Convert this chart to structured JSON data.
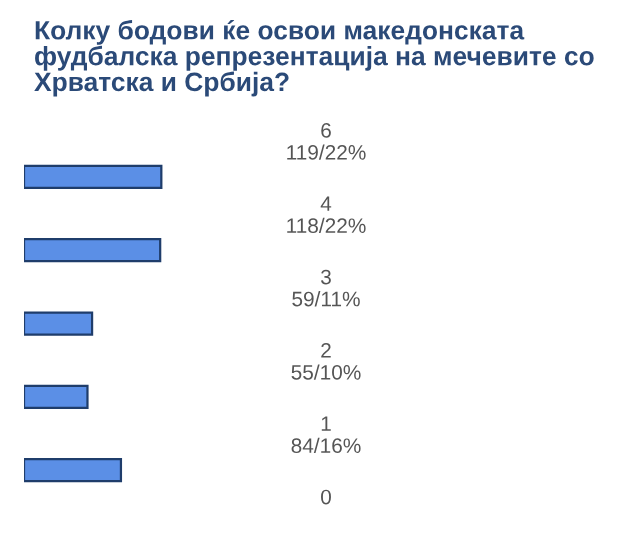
{
  "chart_data": {
    "type": "bar",
    "orientation": "horizontal",
    "title": "Колку бодови ќе освои македонската\nфудбалска репрезентација на мечевите со\nХрватска и Србија?",
    "categories": [
      "6",
      "4",
      "3",
      "2",
      "1",
      "0"
    ],
    "values": [
      119,
      118,
      59,
      55,
      84,
      null
    ],
    "value_labels": [
      "119/22%",
      "118/22%",
      "59/11%",
      "55/10%",
      "84/16%",
      null
    ],
    "color": "#5b8fe6"
  }
}
